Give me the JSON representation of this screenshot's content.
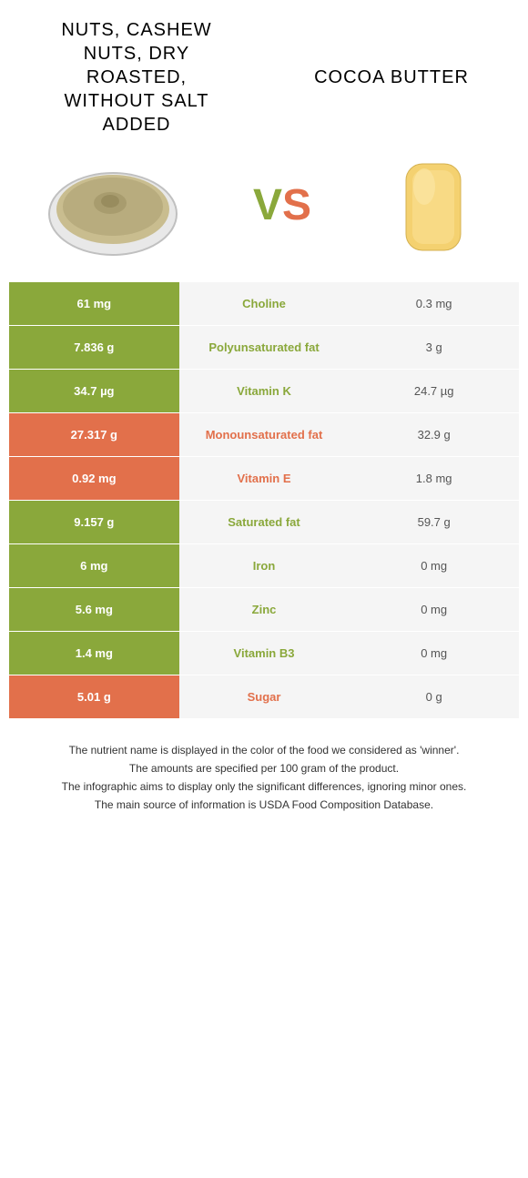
{
  "colors": {
    "green": "#8aa83b",
    "orange": "#e2704b",
    "grey": "#f5f5f5"
  },
  "header": {
    "left_title": "NUTS, CASHEW NUTS, DRY ROASTED, WITHOUT SALT ADDED",
    "right_title": "COCOA BUTTER",
    "vs_v": "V",
    "vs_s": "S"
  },
  "rows": [
    {
      "left": "61 mg",
      "label": "Choline",
      "right": "0.3 mg",
      "winner": "left"
    },
    {
      "left": "7.836 g",
      "label": "Polyunsaturated fat",
      "right": "3 g",
      "winner": "left"
    },
    {
      "left": "34.7 µg",
      "label": "Vitamin K",
      "right": "24.7 µg",
      "winner": "left"
    },
    {
      "left": "27.317 g",
      "label": "Monounsaturated fat",
      "right": "32.9 g",
      "winner": "right"
    },
    {
      "left": "0.92 mg",
      "label": "Vitamin E",
      "right": "1.8 mg",
      "winner": "right"
    },
    {
      "left": "9.157 g",
      "label": "Saturated fat",
      "right": "59.7 g",
      "winner": "left"
    },
    {
      "left": "6 mg",
      "label": "Iron",
      "right": "0 mg",
      "winner": "left"
    },
    {
      "left": "5.6 mg",
      "label": "Zinc",
      "right": "0 mg",
      "winner": "left"
    },
    {
      "left": "1.4 mg",
      "label": "Vitamin B3",
      "right": "0 mg",
      "winner": "left"
    },
    {
      "left": "5.01 g",
      "label": "Sugar",
      "right": "0 g",
      "winner": "right"
    }
  ],
  "footer": {
    "line1": "The nutrient name is displayed in the color of the food we considered as 'winner'.",
    "line2": "The amounts are specified per 100 gram of the product.",
    "line3": "The infographic aims to display only the significant differences, ignoring minor ones.",
    "line4": "The main source of information is USDA Food Composition Database."
  }
}
